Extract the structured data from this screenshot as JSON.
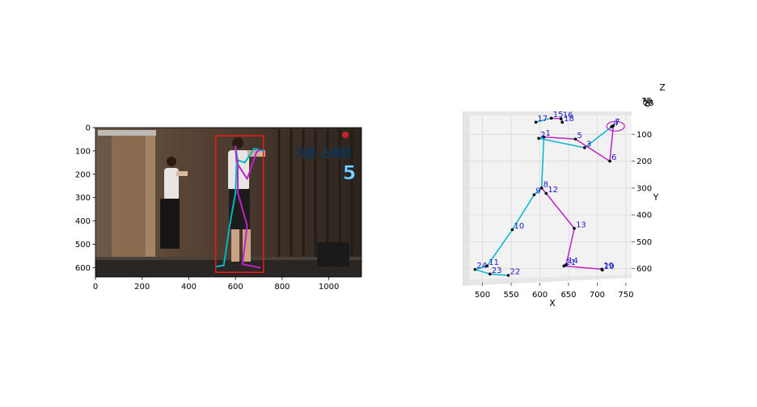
{
  "chart_data": [
    {
      "type": "image",
      "xlim": [
        0,
        1140
      ],
      "ylim": [
        640,
        0
      ],
      "x_ticks": [
        "0",
        "200",
        "400",
        "600",
        "800",
        "1000"
      ],
      "y_ticks": [
        "0",
        "100",
        "200",
        "300",
        "400",
        "500",
        "600"
      ],
      "overlay_text": {
        "title": "기본 스쿼트",
        "number": "5"
      },
      "bounding_box": {
        "x": [
          515,
          720
        ],
        "y": [
          35,
          620
        ],
        "color": "#e51c1c"
      },
      "skeleton_colors": {
        "left": "#00b5c8",
        "right": "#c020c8"
      }
    },
    {
      "type": "scatter3d",
      "xlabel": "X",
      "ylabel": "Y",
      "zlabel": "Z",
      "xlim": [
        478,
        760
      ],
      "ylim": [
        640,
        30
      ],
      "x_ticks": [
        "500",
        "550",
        "600",
        "650",
        "700",
        "750"
      ],
      "y_ticks": [
        "100",
        "200",
        "300",
        "400",
        "500",
        "600"
      ],
      "joints": [
        {
          "id": "1",
          "x": 607,
          "y": 110
        },
        {
          "id": "2",
          "x": 598,
          "y": 115
        },
        {
          "id": "3",
          "x": 678,
          "y": 150
        },
        {
          "id": "4",
          "x": 725,
          "y": 72
        },
        {
          "id": "5",
          "x": 662,
          "y": 118
        },
        {
          "id": "6",
          "x": 722,
          "y": 200
        },
        {
          "id": "7",
          "x": 728,
          "y": 68
        },
        {
          "id": "8",
          "x": 603,
          "y": 300
        },
        {
          "id": "9",
          "x": 590,
          "y": 325
        },
        {
          "id": "10",
          "x": 552,
          "y": 455
        },
        {
          "id": "11",
          "x": 508,
          "y": 590
        },
        {
          "id": "12",
          "x": 611,
          "y": 320
        },
        {
          "id": "13",
          "x": 660,
          "y": 450
        },
        {
          "id": "14",
          "x": 646,
          "y": 585
        },
        {
          "id": "15",
          "x": 620,
          "y": 40
        },
        {
          "id": "16",
          "x": 637,
          "y": 42
        },
        {
          "id": "17",
          "x": 593,
          "y": 55
        },
        {
          "id": "18",
          "x": 639,
          "y": 55
        },
        {
          "id": "19",
          "x": 708,
          "y": 602
        },
        {
          "id": "20",
          "x": 709,
          "y": 605
        },
        {
          "id": "21",
          "x": 642,
          "y": 590
        },
        {
          "id": "22",
          "x": 545,
          "y": 625
        },
        {
          "id": "23",
          "x": 513,
          "y": 620
        },
        {
          "id": "24",
          "x": 487,
          "y": 603
        }
      ],
      "bones_left": [
        [
          "1",
          "2"
        ],
        [
          "2",
          "3"
        ],
        [
          "3",
          "4"
        ],
        [
          "1",
          "8"
        ],
        [
          "8",
          "9"
        ],
        [
          "9",
          "10"
        ],
        [
          "10",
          "11"
        ],
        [
          "11",
          "24"
        ],
        [
          "24",
          "23"
        ],
        [
          "23",
          "22"
        ],
        [
          "15",
          "17"
        ]
      ],
      "bones_right": [
        [
          "1",
          "5"
        ],
        [
          "5",
          "6"
        ],
        [
          "6",
          "7"
        ],
        [
          "8",
          "12"
        ],
        [
          "12",
          "13"
        ],
        [
          "13",
          "14"
        ],
        [
          "14",
          "21"
        ],
        [
          "21",
          "19"
        ],
        [
          "19",
          "20"
        ],
        [
          "16",
          "18"
        ],
        [
          "15",
          "16"
        ]
      ],
      "z_ticks": [
        "75",
        "50",
        "25",
        "0"
      ]
    }
  ]
}
